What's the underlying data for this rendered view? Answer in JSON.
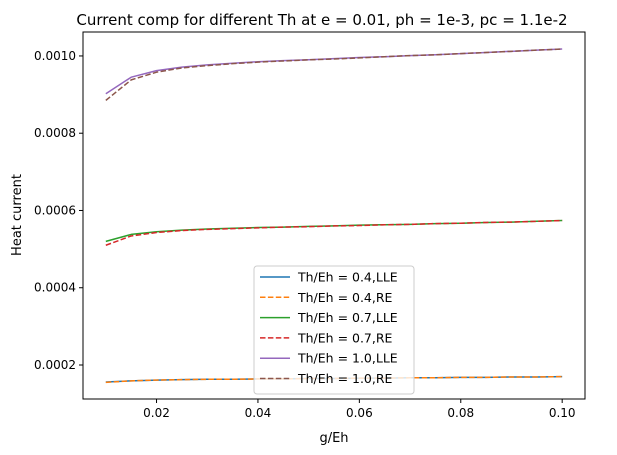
{
  "chart_data": {
    "type": "line",
    "title": "Current comp for different Th at e = 0.01, ph = 1e-3, pc = 1.1e-2",
    "xlabel": "g/Eh",
    "ylabel": "Heat current",
    "xlim": [
      0.0055,
      0.1045
    ],
    "ylim": [
      0.000112,
      0.001062
    ],
    "x_ticks": [
      0.02,
      0.04,
      0.06,
      0.08,
      0.1
    ],
    "x_tick_labels": [
      "0.02",
      "0.04",
      "0.06",
      "0.08",
      "0.10"
    ],
    "y_ticks": [
      0.0002,
      0.0004,
      0.0006,
      0.0008,
      0.001
    ],
    "y_tick_labels": [
      "0.0002",
      "0.0004",
      "0.0006",
      "0.0008",
      "0.0010"
    ],
    "grid": false,
    "legend_position": "bottom-center",
    "x": [
      0.01,
      0.015,
      0.02,
      0.025,
      0.03,
      0.035,
      0.04,
      0.045,
      0.05,
      0.055,
      0.06,
      0.065,
      0.07,
      0.075,
      0.08,
      0.085,
      0.09,
      0.095,
      0.1
    ],
    "series": [
      {
        "name": "Th/Eh = 0.4,LLE",
        "color": "#1f77b4",
        "style": "solid",
        "values": [
          0.000156,
          0.000159,
          0.000161,
          0.000162,
          0.000163,
          0.000163,
          0.000164,
          0.000164,
          0.000165,
          0.000165,
          0.000166,
          0.000166,
          0.000167,
          0.000167,
          0.000168,
          0.000168,
          0.000169,
          0.000169,
          0.00017
        ]
      },
      {
        "name": "Th/Eh = 0.4,RE",
        "color": "#ff7f0e",
        "style": "dashed",
        "values": [
          0.000155,
          0.000159,
          0.000161,
          0.000162,
          0.000163,
          0.000163,
          0.000164,
          0.000164,
          0.000165,
          0.000165,
          0.000166,
          0.000166,
          0.000167,
          0.000167,
          0.000168,
          0.000168,
          0.000169,
          0.000169,
          0.00017
        ]
      },
      {
        "name": "Th/Eh = 0.7,LLE",
        "color": "#2ca02c",
        "style": "solid",
        "values": [
          0.00052,
          0.000538,
          0.000545,
          0.000549,
          0.000552,
          0.000554,
          0.000556,
          0.000557,
          0.000559,
          0.00056,
          0.000562,
          0.000563,
          0.000564,
          0.000566,
          0.000567,
          0.000569,
          0.00057,
          0.000572,
          0.000574
        ]
      },
      {
        "name": "Th/Eh = 0.7,RE",
        "color": "#d62728",
        "style": "dashed",
        "values": [
          0.00051,
          0.000534,
          0.000543,
          0.000548,
          0.000551,
          0.000553,
          0.000555,
          0.000557,
          0.000558,
          0.00056,
          0.000561,
          0.000563,
          0.000564,
          0.000566,
          0.000567,
          0.000569,
          0.00057,
          0.000572,
          0.000574
        ]
      },
      {
        "name": "Th/Eh = 1.0,LLE",
        "color": "#9467bd",
        "style": "solid",
        "values": [
          0.000902,
          0.000945,
          0.000962,
          0.000971,
          0.000977,
          0.000981,
          0.000985,
          0.000988,
          0.00099,
          0.000993,
          0.000996,
          0.000998,
          0.001001,
          0.001003,
          0.001006,
          0.001009,
          0.001012,
          0.001015,
          0.001018
        ]
      },
      {
        "name": "Th/Eh = 1.0,RE",
        "color": "#8c564b",
        "style": "dashed",
        "values": [
          0.000885,
          0.000938,
          0.000958,
          0.000969,
          0.000975,
          0.00098,
          0.000984,
          0.000987,
          0.00099,
          0.000992,
          0.000995,
          0.000998,
          0.001001,
          0.001003,
          0.001006,
          0.001009,
          0.001012,
          0.001015,
          0.001018
        ]
      }
    ]
  }
}
